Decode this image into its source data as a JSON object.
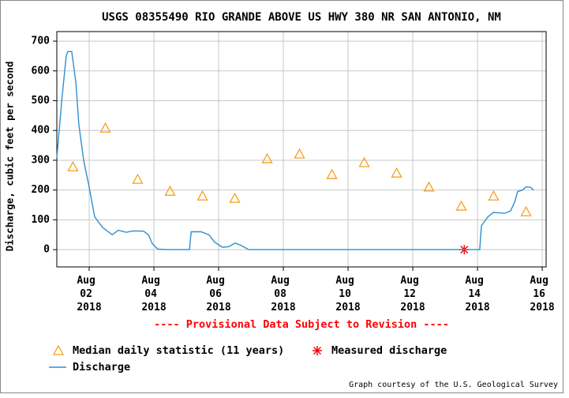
{
  "chart_data": {
    "type": "line",
    "title": "USGS 08355490 RIO GRANDE ABOVE US HWY 380 NR SAN ANTONIO, NM",
    "y_label": "Discharge, cubic feet per second",
    "annotation": "---- Provisional Data Subject to Revision ----",
    "annotation_color": "#ff0000",
    "footer": "Graph courtesy of the U.S. Geological Survey",
    "xlim": [
      1,
      16.12
    ],
    "ylim": [
      -58,
      732
    ],
    "xticks": [
      {
        "value": 2,
        "label": "Aug 02 2018"
      },
      {
        "value": 4,
        "label": "Aug 04 2018"
      },
      {
        "value": 6,
        "label": "Aug 06 2018"
      },
      {
        "value": 8,
        "label": "Aug 08 2018"
      },
      {
        "value": 10,
        "label": "Aug 10 2018"
      },
      {
        "value": 12,
        "label": "Aug 12 2018"
      },
      {
        "value": 14,
        "label": "Aug 14 2018"
      },
      {
        "value": 16,
        "label": "Aug 16 2018"
      }
    ],
    "yticks": [
      0,
      100,
      200,
      300,
      400,
      500,
      600,
      700
    ],
    "grid": true,
    "series": [
      {
        "name": "Median daily statistic (11 years)",
        "marker": "triangle",
        "color": "#f5a020",
        "x": [
          1.5,
          2.5,
          3.5,
          4.5,
          5.5,
          6.5,
          7.5,
          8.5,
          9.5,
          10.5,
          11.5,
          12.5,
          13.5,
          14.5,
          15.5
        ],
        "values": [
          278,
          408,
          236,
          196,
          180,
          172,
          305,
          321,
          252,
          292,
          257,
          210,
          146,
          180,
          127
        ]
      },
      {
        "name": "Measured discharge",
        "marker": "asterisk",
        "color": "#ff0000",
        "x": [
          13.59
        ],
        "values": [
          0
        ]
      },
      {
        "name": "Discharge",
        "marker": "line",
        "color": "#2e8fd0",
        "x": [
          1.0,
          1.15,
          1.29,
          1.34,
          1.46,
          1.59,
          1.68,
          1.83,
          1.98,
          2.17,
          2.41,
          2.71,
          2.9,
          3.15,
          3.34,
          3.68,
          3.83,
          3.95,
          4.12,
          4.37,
          5.1,
          5.15,
          5.46,
          5.7,
          5.88,
          6.12,
          6.32,
          6.51,
          6.68,
          6.93,
          14.07,
          14.12,
          14.32,
          14.49,
          14.85,
          15.02,
          15.15,
          15.24,
          15.39,
          15.49,
          15.63,
          15.73
        ],
        "values": [
          308,
          500,
          650,
          665,
          665,
          560,
          420,
          300,
          220,
          110,
          75,
          50,
          65,
          58,
          63,
          62,
          50,
          20,
          2,
          0,
          0,
          60,
          60,
          50,
          25,
          8,
          10,
          22,
          15,
          0,
          0,
          80,
          110,
          125,
          122,
          130,
          160,
          195,
          200,
          210,
          210,
          200
        ]
      }
    ]
  }
}
